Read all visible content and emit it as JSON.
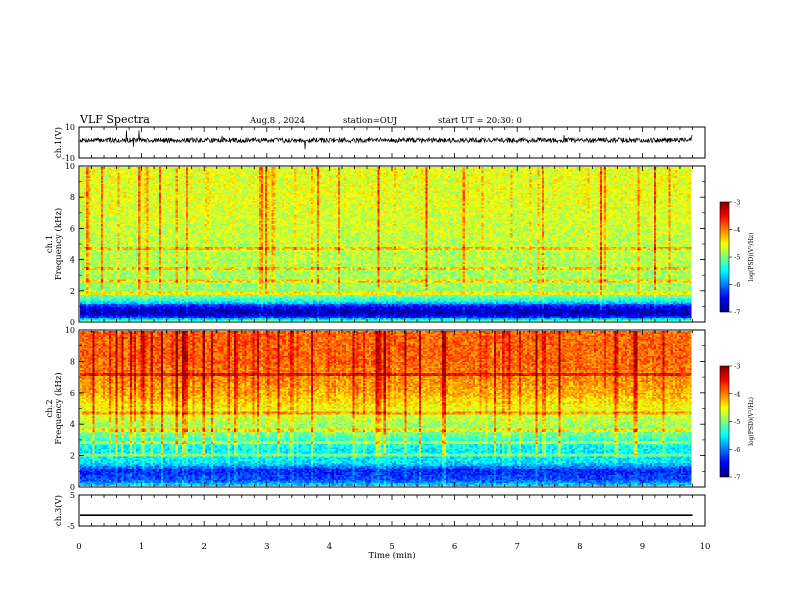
{
  "header": {
    "title": "VLF Spectra",
    "date": "Aug.8 , 2024",
    "station": "station=OUJ",
    "start_ut": "start UT = 20:30: 0"
  },
  "chart_data": [
    {
      "type": "line",
      "panel": "ch1-waveform",
      "ylabel": "ch.1(V)",
      "ylim": [
        -10,
        10
      ],
      "yticks": [
        "10",
        "-10"
      ],
      "xlim": [
        0,
        10
      ],
      "description_of_series": "broadband noise waveform centred near +1 V with occasional spikes",
      "baseline_v": 1.5
    },
    {
      "type": "heatmap",
      "panel": "ch1-spectrogram",
      "ylabel": "Frequency (kHz)",
      "ylabel_prefix": "ch.1",
      "ylim": [
        0,
        10
      ],
      "yticks": [
        "0",
        "2",
        "4",
        "6",
        "8",
        "10"
      ],
      "xlim": [
        0,
        10
      ],
      "data_extent_min": 9.8,
      "colorbar": {
        "label": "log(PSD)(V²/Hz)",
        "ticks": [
          "-3",
          "-4",
          "-5",
          "-6",
          "-7"
        ],
        "range": [
          -7,
          -3
        ]
      },
      "band_profile_khz": [
        [
          0,
          -5.0
        ],
        [
          0.3,
          -6.6
        ],
        [
          0.6,
          -6.8
        ],
        [
          1.0,
          -6.4
        ],
        [
          1.2,
          -5.6
        ],
        [
          1.6,
          -5.1
        ],
        [
          2,
          -4.9
        ],
        [
          4,
          -4.8
        ],
        [
          6,
          -4.7
        ],
        [
          8,
          -4.6
        ],
        [
          10,
          -4.6
        ]
      ],
      "lines_khz": [
        1.8,
        2.6,
        3.4,
        4.7
      ]
    },
    {
      "type": "heatmap",
      "panel": "ch2-spectrogram",
      "ylabel": "Frequency (kHz)",
      "ylabel_prefix": "ch.2",
      "ylim": [
        0,
        10
      ],
      "yticks": [
        "0",
        "2",
        "4",
        "6",
        "8",
        "10"
      ],
      "xlim": [
        0,
        10
      ],
      "data_extent_min": 9.8,
      "colorbar": {
        "label": "log(PSD)(V²/Hz)",
        "ticks": [
          "-3",
          "-4",
          "-5",
          "-6",
          "-7"
        ],
        "range": [
          -7,
          -3
        ]
      },
      "band_profile_khz": [
        [
          0,
          -5.6
        ],
        [
          0.4,
          -6.2
        ],
        [
          1.0,
          -6.4
        ],
        [
          1.5,
          -5.6
        ],
        [
          2.5,
          -5.5
        ],
        [
          3.5,
          -5.0
        ],
        [
          4.5,
          -4.7
        ],
        [
          6,
          -4.2
        ],
        [
          8,
          -3.9
        ],
        [
          10,
          -3.9
        ]
      ],
      "lines_khz": [
        2.0,
        2.8,
        3.6,
        4.7,
        7.2
      ]
    },
    {
      "type": "line",
      "panel": "ch3-waveform",
      "ylabel": "ch.3(V)",
      "ylim": [
        -5,
        5
      ],
      "yticks": [
        "5",
        "-5"
      ],
      "xlim": [
        0,
        10
      ],
      "xlabel": "Time (min)",
      "xticks": [
        "0",
        "1",
        "2",
        "3",
        "4",
        "5",
        "6",
        "7",
        "8",
        "9",
        "10"
      ],
      "baseline_v": -1.5
    }
  ]
}
